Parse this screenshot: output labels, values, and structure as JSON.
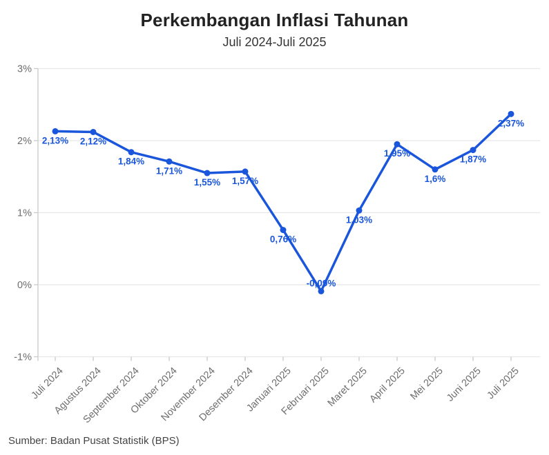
{
  "chart_data": {
    "type": "line",
    "title": "Perkembangan Inflasi Tahunan",
    "subtitle": "Juli 2024-Juli 2025",
    "source": "Sumber: Badan Pusat Statistik (BPS)",
    "categories": [
      "Juli 2024",
      "Agustus 2024",
      "September 2024",
      "Oktober 2024",
      "November 2024",
      "Desember 2024",
      "Januari 2025",
      "Februari 2025",
      "Maret 2025",
      "April 2025",
      "Mei 2025",
      "Juni 2025",
      "Juli 2025"
    ],
    "values": [
      2.13,
      2.12,
      1.84,
      1.71,
      1.55,
      1.57,
      0.76,
      -0.09,
      1.03,
      1.95,
      1.6,
      1.87,
      2.37
    ],
    "point_labels": [
      "2,13%",
      "2,12%",
      "1,84%",
      "1,71%",
      "1,55%",
      "1,57%",
      "0,76%",
      "-0,09%",
      "1,03%",
      "1,95%",
      "1,6%",
      "1,87%",
      "2,37%"
    ],
    "ylim": [
      -1,
      3
    ],
    "yticks": [
      3,
      2,
      1,
      0,
      -1
    ],
    "ytick_labels": [
      "3%",
      "2%",
      "1%",
      "0%",
      "-1%"
    ],
    "xlabel": "",
    "ylabel": "",
    "grid": true,
    "legend": false,
    "colors": {
      "line": "#1a56db",
      "marker": "#1a56db",
      "point_label": "#1a56db",
      "gridline": "#e7e7e7",
      "axis": "#c9c9c9",
      "tick_text": "#6e6e6e",
      "title_text": "#222222",
      "subtitle_text": "#333333",
      "source_text": "#444444"
    }
  }
}
